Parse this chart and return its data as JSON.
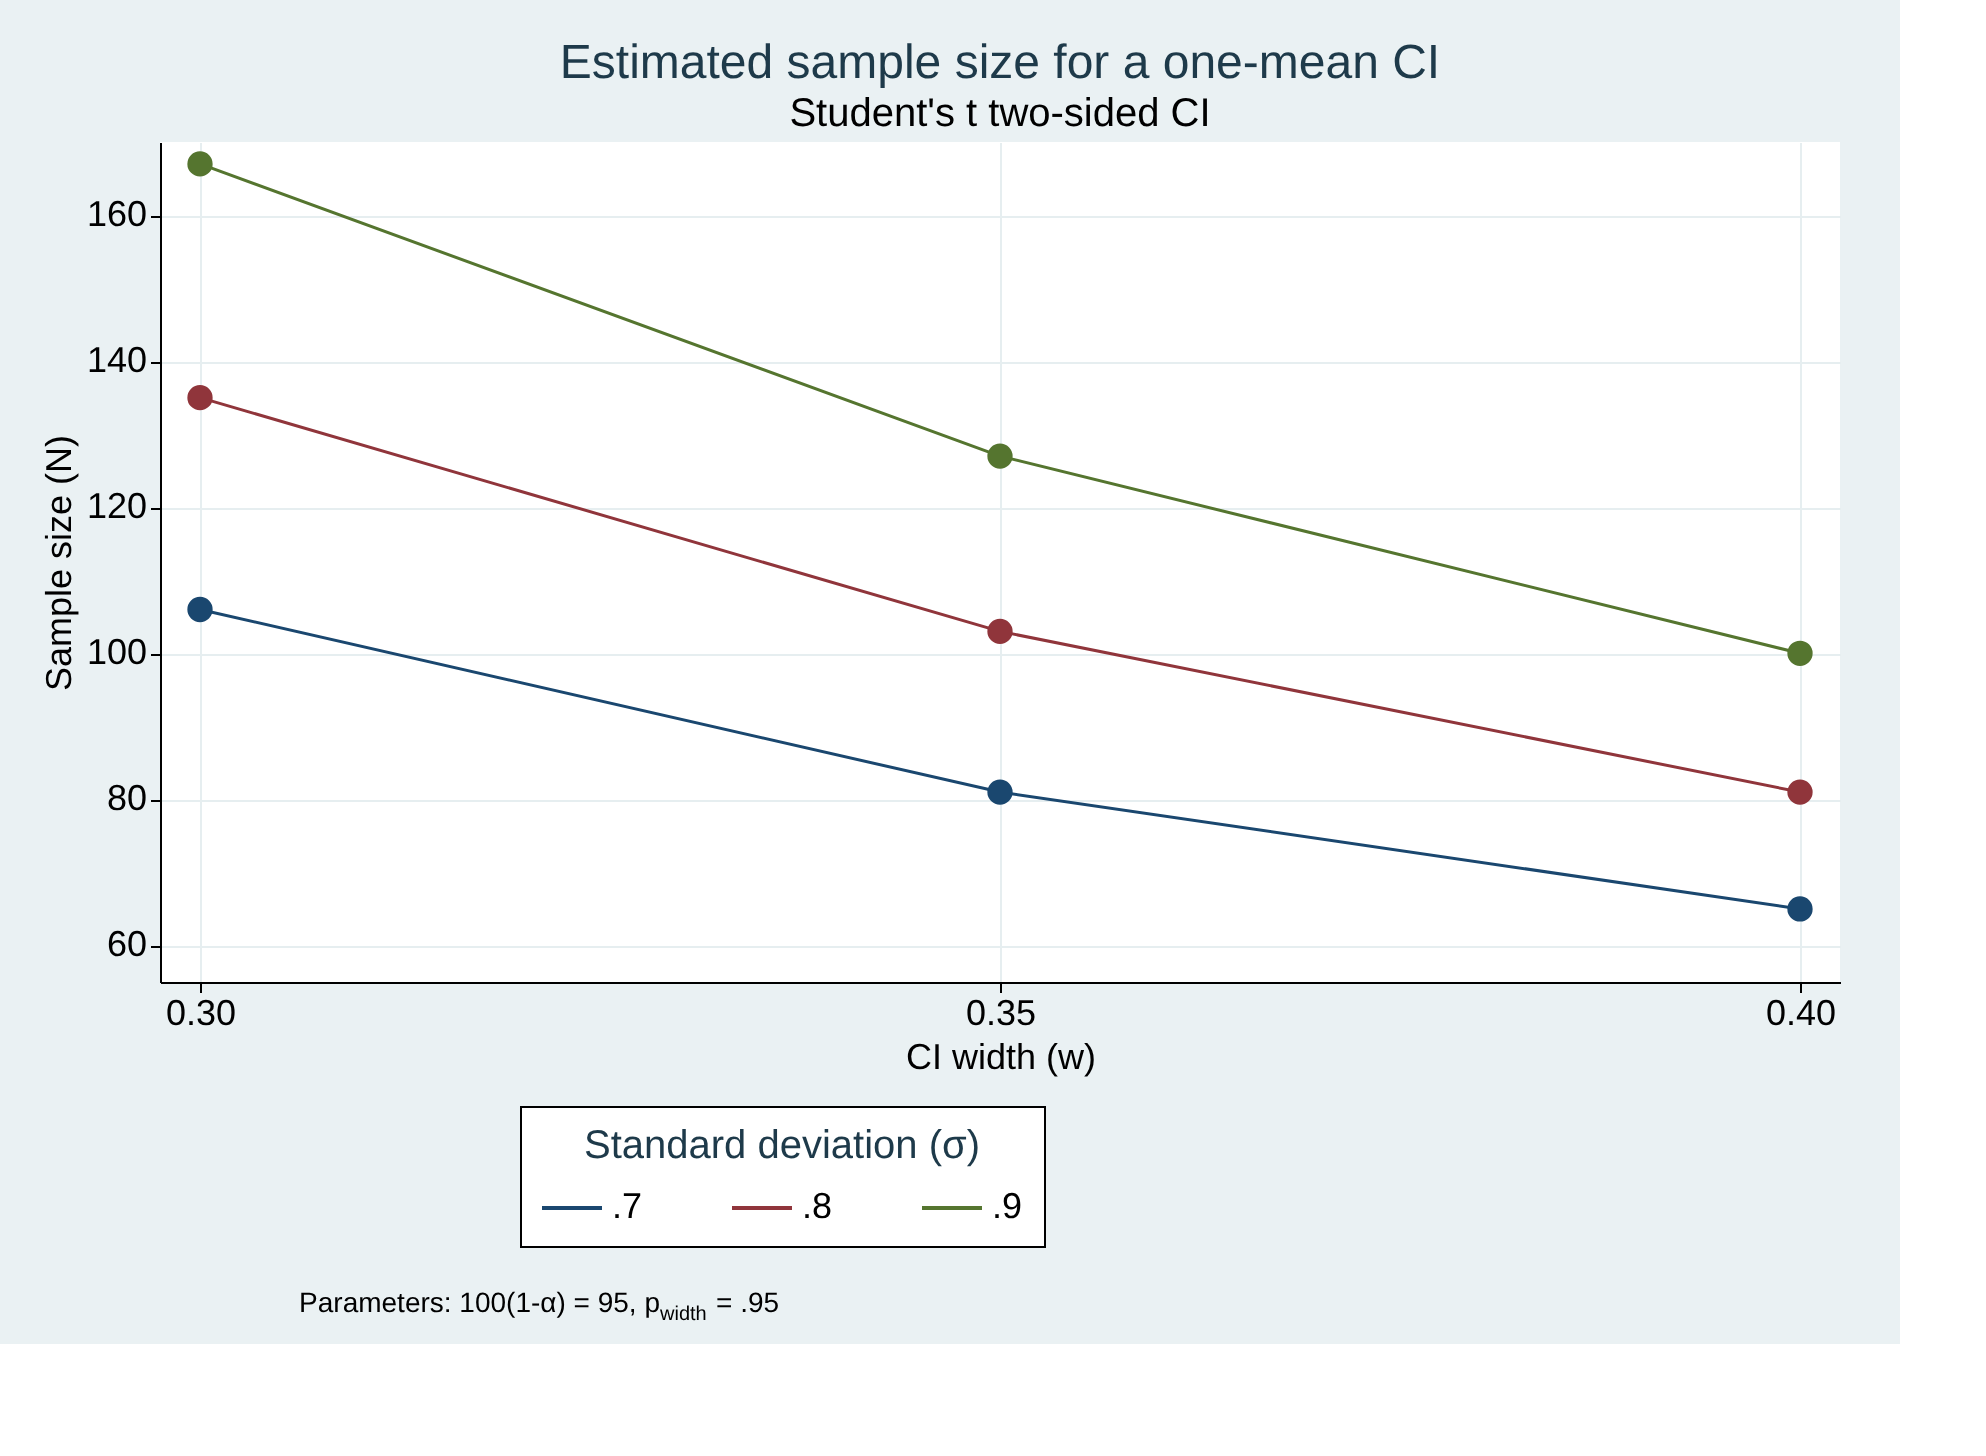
{
  "chart_data": {
    "type": "line",
    "title": "Estimated sample size for a one-mean CI",
    "subtitle": "Student's t two-sided CI",
    "xlabel": "CI width (w)",
    "ylabel": "Sample size (N)",
    "legend_title": "Standard deviation (σ)",
    "x": [
      0.3,
      0.35,
      0.4
    ],
    "series": [
      {
        "name": ".7",
        "color": "#1a476f",
        "values": [
          106,
          81,
          65
        ]
      },
      {
        "name": ".8",
        "color": "#90353b",
        "values": [
          135,
          103,
          81
        ]
      },
      {
        "name": ".9",
        "color": "#55752f",
        "values": [
          167,
          127,
          100
        ]
      }
    ],
    "xlim": [
      0.2975,
      0.4025
    ],
    "xticks": [
      {
        "value": 0.3,
        "label": "0.30"
      },
      {
        "value": 0.35,
        "label": "0.35"
      },
      {
        "value": 0.4,
        "label": "0.40"
      }
    ],
    "ylim": [
      55,
      170
    ],
    "yticks": [
      60,
      80,
      100,
      120,
      140,
      160
    ],
    "grid": true,
    "legend": "bottom",
    "marker": "circle",
    "line_style": "solid",
    "annotations": [
      "Parameters: 100(1-α) = 95, p$_{width}$ = .95"
    ]
  }
}
